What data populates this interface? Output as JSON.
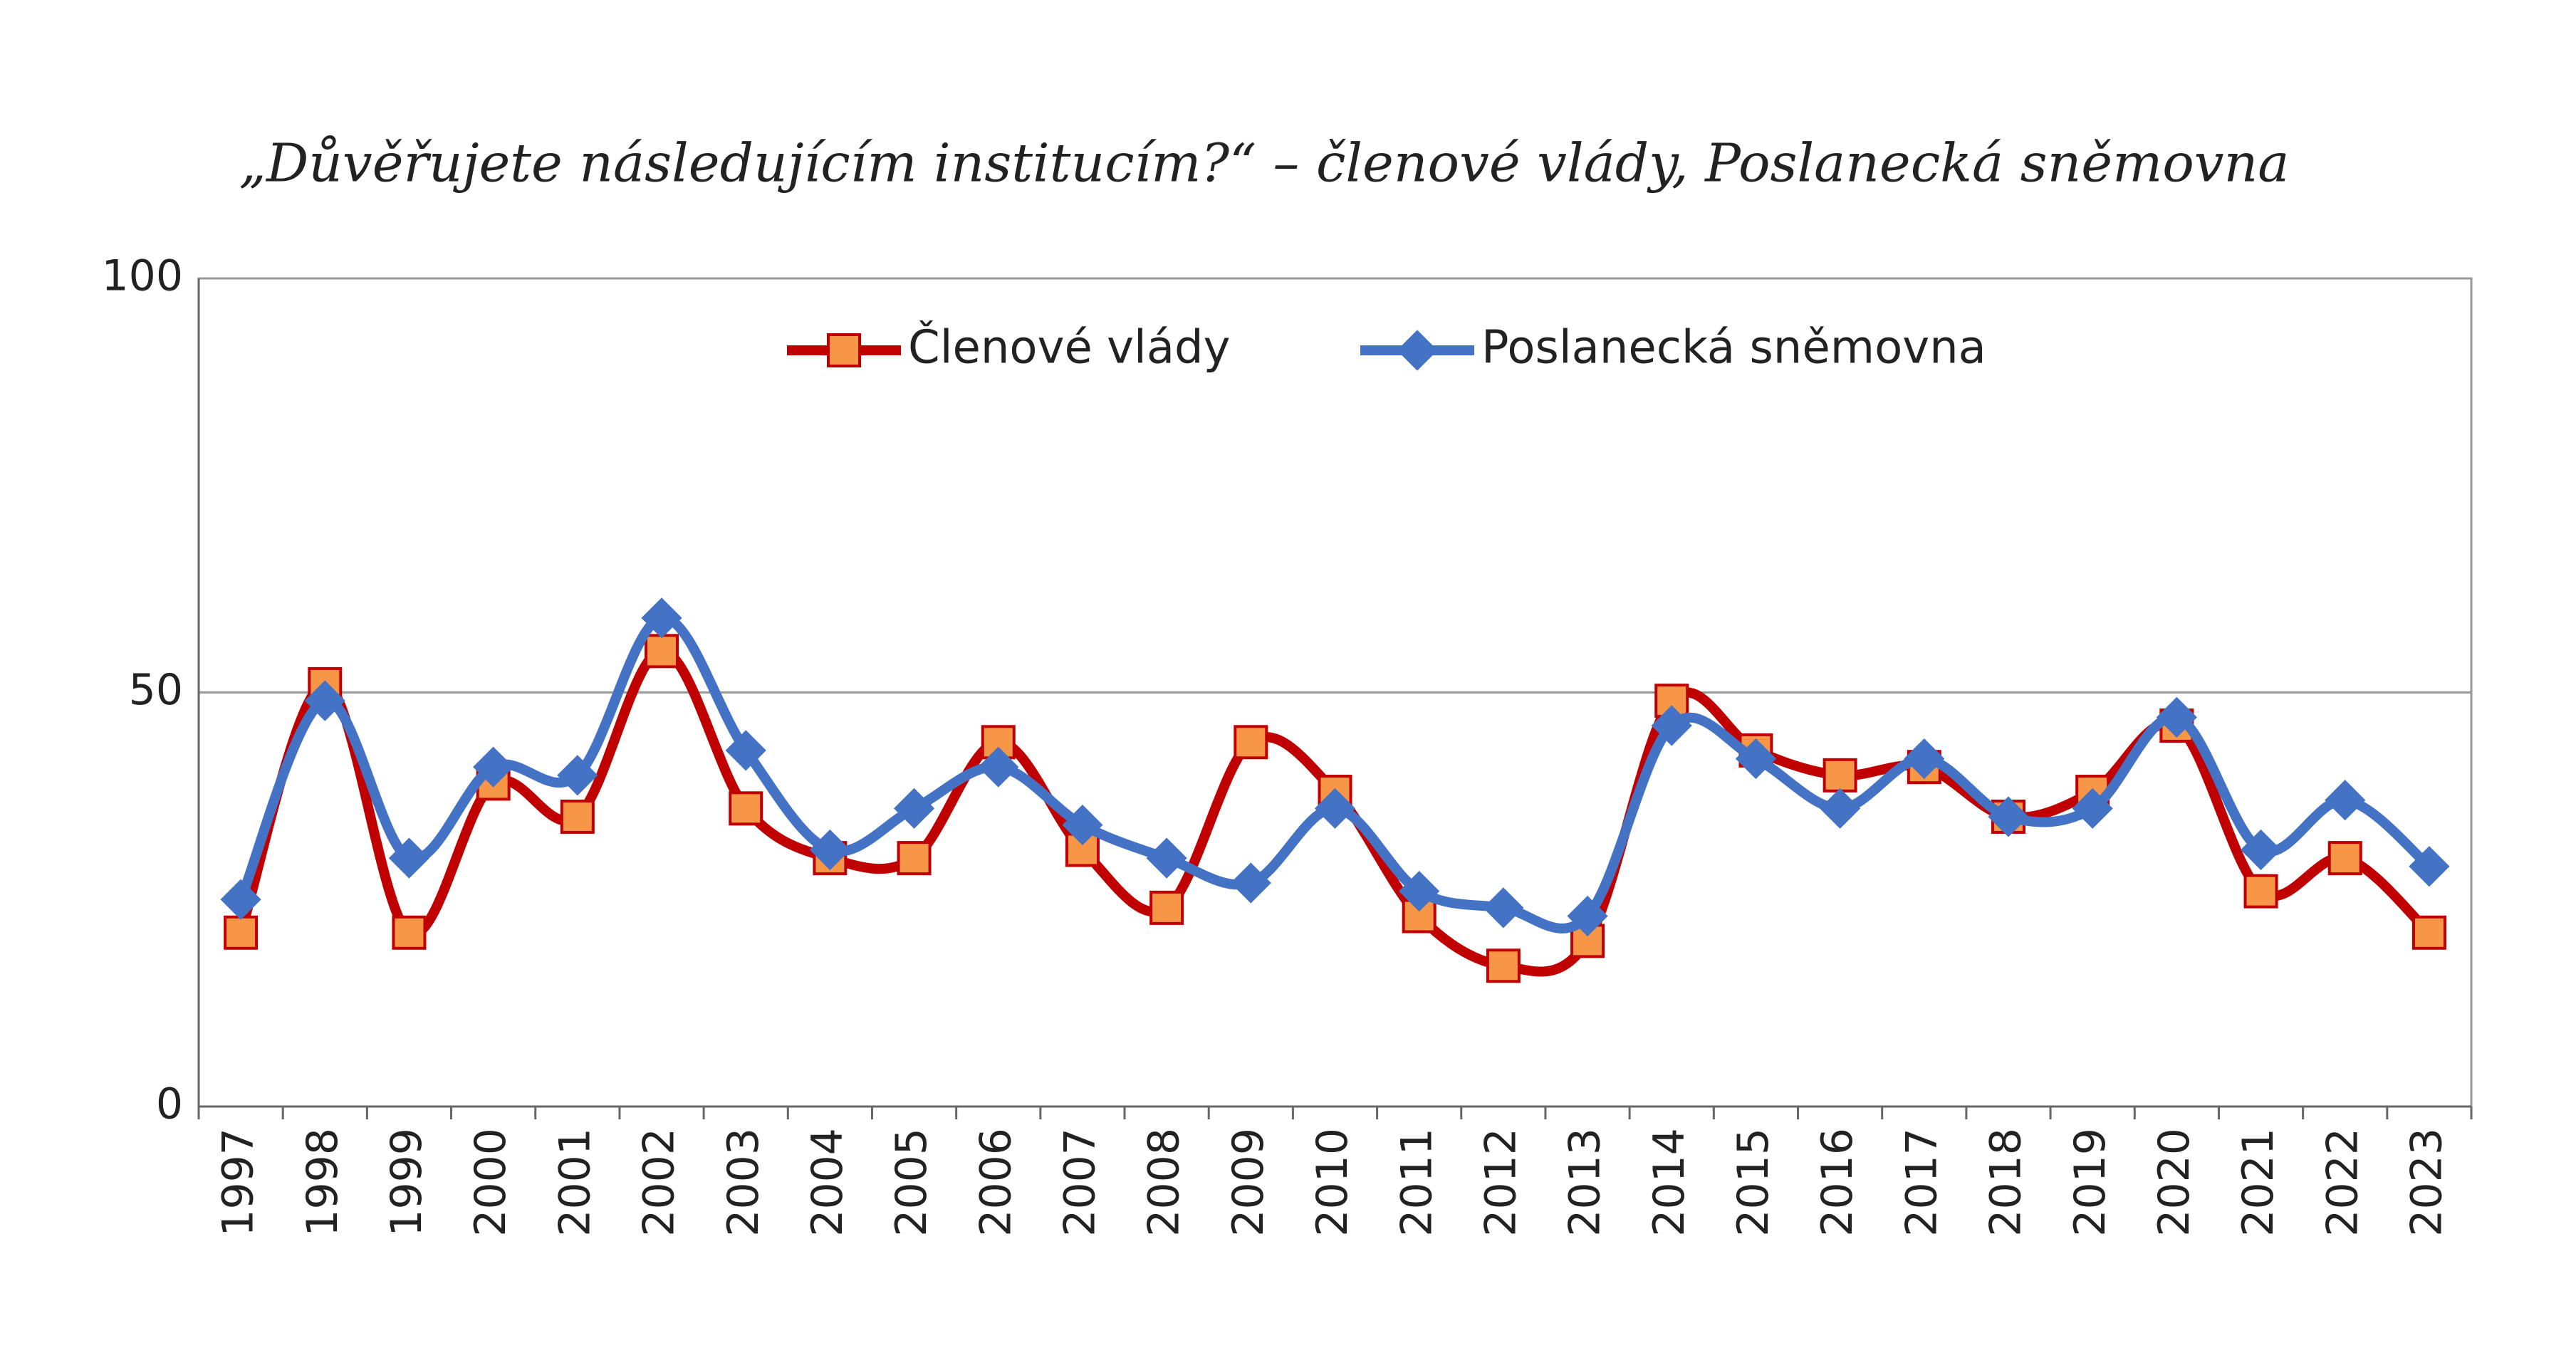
{
  "chart_data": {
    "type": "line",
    "title": "„Důvěřujete následujícím institucím?“ – členové vlády, Poslanecká sněmovna",
    "categories": [
      "1997",
      "1998",
      "1999",
      "2000",
      "2001",
      "2002",
      "2003",
      "2004",
      "2005",
      "2006",
      "2007",
      "2008",
      "2009",
      "2010",
      "2011",
      "2012",
      "2013",
      "2014",
      "2015",
      "2016",
      "2017",
      "2018",
      "2019",
      "2020",
      "2021",
      "2022",
      "2023"
    ],
    "series": [
      {
        "name": "Členové vlády",
        "color": "#c00000",
        "marker": "square",
        "marker_color": "#f79646",
        "values": [
          21,
          51,
          21,
          39,
          35,
          55,
          36,
          30,
          30,
          44,
          31,
          24,
          44,
          38,
          23,
          17,
          20,
          49,
          43,
          40,
          41,
          35,
          38,
          46,
          26,
          30,
          21
        ]
      },
      {
        "name": "Poslanecká sněmovna",
        "color": "#4472c4",
        "marker": "diamond",
        "marker_color": "#4472c4",
        "values": [
          25,
          49,
          30,
          41,
          40,
          59,
          43,
          31,
          36,
          41,
          34,
          30,
          27,
          36,
          26,
          24,
          23,
          46,
          42,
          36,
          42,
          35,
          36,
          47,
          31,
          37,
          29
        ]
      }
    ],
    "ylim": [
      0,
      100
    ],
    "yticks": [
      0,
      50,
      100
    ],
    "grid": true,
    "smooth": true,
    "legend": "top"
  }
}
